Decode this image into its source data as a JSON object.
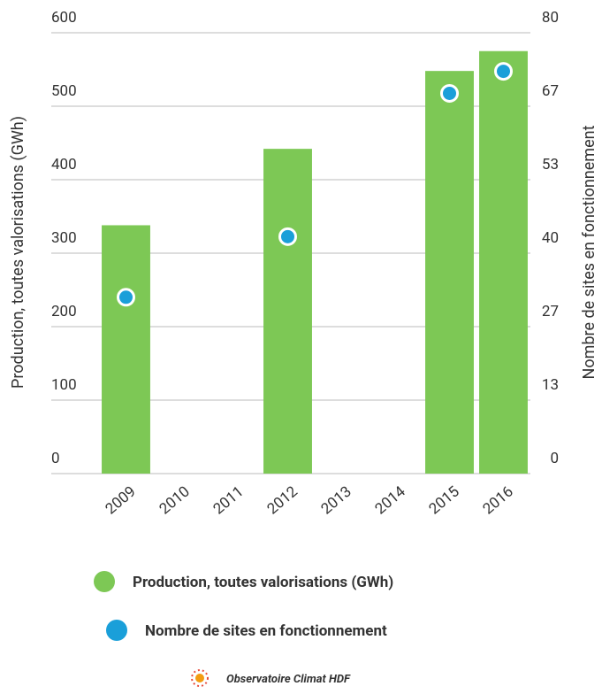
{
  "chart_data": {
    "type": "bar",
    "categories": [
      "2009",
      "2010",
      "2011",
      "2012",
      "2013",
      "2014",
      "2015",
      "2016"
    ],
    "series": [
      {
        "name": "Production, toutes valorisations (GWh)",
        "type": "bar",
        "color": "#7dc855",
        "values": [
          338,
          null,
          null,
          442,
          null,
          null,
          548,
          575
        ]
      },
      {
        "name": "Nombre de sites en fonctionnement",
        "type": "scatter",
        "axis": "y2",
        "color": "#1a9fd9",
        "values": [
          32,
          null,
          null,
          43,
          null,
          null,
          69,
          73
        ]
      }
    ],
    "y_label": "Production, toutes valorisations (GWh)",
    "y2_label": "Nombre de sites en fonctionnement",
    "ylim": [
      0,
      600
    ],
    "yticks": [
      0,
      100,
      200,
      300,
      400,
      500,
      600
    ],
    "y2lim": [
      0,
      80
    ],
    "y2ticks": [
      0,
      {
        "value": 13.33,
        "label": "13"
      },
      {
        "value": 26.67,
        "label": "27"
      },
      40,
      {
        "value": 53.33,
        "label": "53"
      },
      {
        "value": 66.67,
        "label": "67"
      },
      80
    ],
    "grid": true,
    "source": "Observatoire Climat HDF"
  }
}
